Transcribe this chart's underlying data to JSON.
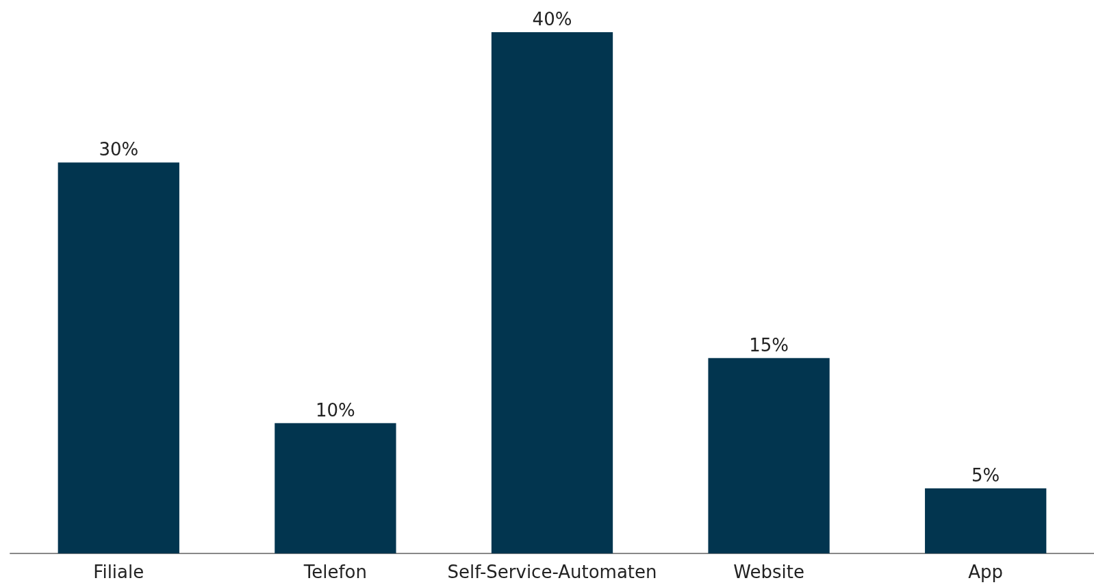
{
  "chart_data": {
    "type": "bar",
    "categories": [
      "Filiale",
      "Telefon",
      "Self-Service-Automaten",
      "Website",
      "App"
    ],
    "values": [
      30,
      10,
      40,
      15,
      5
    ],
    "value_labels": [
      "30%",
      "10%",
      "40%",
      "15%",
      "5%"
    ],
    "color": "#02354f"
  }
}
